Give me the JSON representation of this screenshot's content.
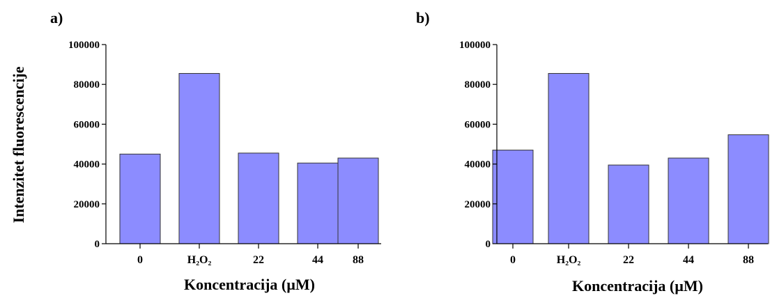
{
  "chart_data": [
    {
      "type": "bar",
      "panel_label": "a)",
      "categories": [
        "0",
        "H₂O₂",
        "22",
        "44",
        "88"
      ],
      "values": [
        45000,
        85500,
        45500,
        40500,
        43000
      ],
      "xlabel": "Koncentracija (µM)",
      "ylabel": "Intenzitet fluorescencije",
      "ylim": [
        0,
        100000
      ],
      "yticks": [
        "0",
        "20000",
        "40000",
        "60000",
        "80000",
        "100000"
      ],
      "bar_color": "#8c8cff",
      "grid": false
    },
    {
      "type": "bar",
      "panel_label": "b)",
      "categories": [
        "0",
        "H₂O₂",
        "22",
        "44",
        "88"
      ],
      "values": [
        47000,
        85500,
        39500,
        43000,
        54700
      ],
      "xlabel": "Koncentracija (µM)",
      "ylabel": "",
      "ylim": [
        0,
        100000
      ],
      "yticks": [
        "0",
        "20000",
        "40000",
        "60000",
        "80000",
        "100000"
      ],
      "bar_color": "#8c8cff",
      "grid": false
    }
  ]
}
